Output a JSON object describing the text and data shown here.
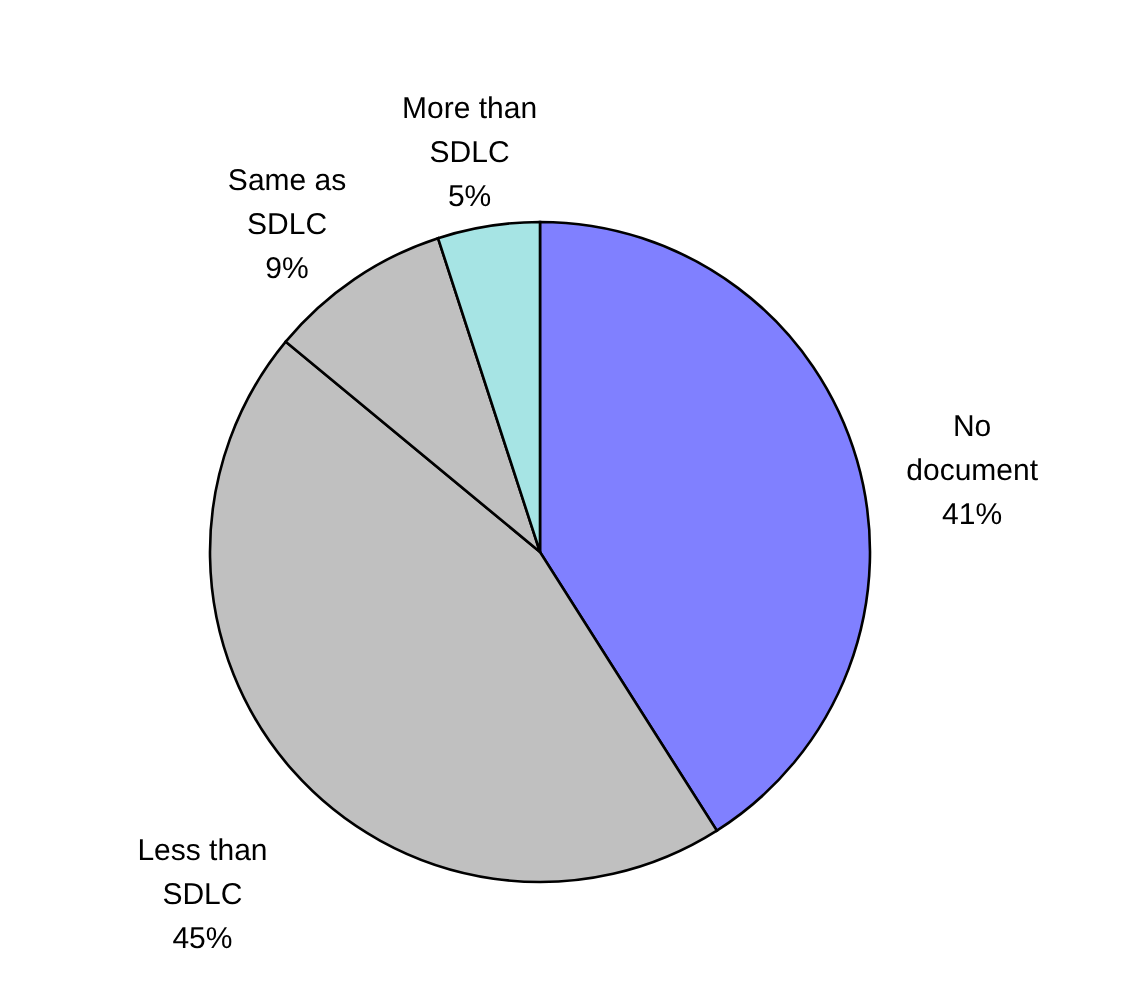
{
  "chart_data": {
    "type": "pie",
    "categories": [
      "No document",
      "Less than SDLC",
      "Same as SDLC",
      "More than SDLC"
    ],
    "values": [
      41,
      45,
      9,
      5
    ],
    "colors": [
      "#8080ff",
      "#c0c0c0",
      "#c0c0c0",
      "#a6e4e4"
    ],
    "value_labels": [
      "41%",
      "45%",
      "9%",
      "5%"
    ]
  }
}
